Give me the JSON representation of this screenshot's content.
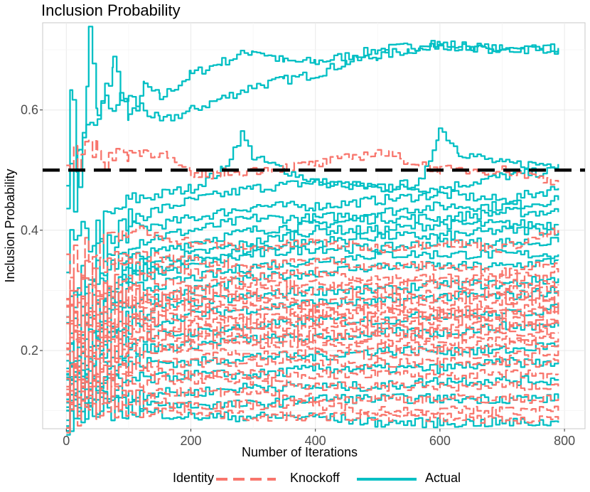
{
  "chart_data": {
    "type": "line",
    "title": "Inclusion Probability",
    "xlabel": "Number of Iterations",
    "ylabel": "Inclusion Probability",
    "xlim": [
      -38,
      833
    ],
    "ylim": [
      0.07,
      0.745
    ],
    "x_ticks": [
      0,
      200,
      400,
      600,
      800
    ],
    "y_ticks": [
      0.2,
      0.4,
      0.6
    ],
    "x_tick_labels": [
      "0",
      "200",
      "400",
      "600",
      "800"
    ],
    "y_tick_labels": [
      "0.2",
      "0.4",
      "0.6"
    ],
    "threshold": 0.5,
    "legend": {
      "title": "Identity",
      "position": "bottom",
      "entries": [
        {
          "label": "Knockoff",
          "color": "#F8766D",
          "linetype": "dashed"
        },
        {
          "label": "Actual",
          "color": "#00BFC4",
          "linetype": "solid"
        }
      ]
    },
    "series": [
      {
        "name": "Actual",
        "color": "#00BFC4",
        "x": [
          0,
          10,
          20,
          36,
          50,
          75,
          100,
          125,
          150,
          200,
          250,
          300,
          350,
          400,
          500,
          600,
          700,
          790
        ],
        "values": [
          0.5,
          0.64,
          0.45,
          0.72,
          0.58,
          0.68,
          0.58,
          0.64,
          0.62,
          0.66,
          0.68,
          0.7,
          0.68,
          0.68,
          0.7,
          0.71,
          0.7,
          0.703
        ]
      },
      {
        "name": "Actual",
        "color": "#00BFC4",
        "x": [
          0,
          20,
          50,
          100,
          150,
          200,
          250,
          300,
          350,
          400,
          450,
          500,
          550,
          600,
          650,
          700,
          790
        ],
        "values": [
          0.45,
          0.5,
          0.6,
          0.62,
          0.58,
          0.6,
          0.62,
          0.64,
          0.65,
          0.66,
          0.68,
          0.69,
          0.7,
          0.71,
          0.7,
          0.7,
          0.7
        ]
      },
      {
        "name": "Actual",
        "color": "#00BFC4",
        "x": [
          0,
          100,
          200,
          250,
          280,
          300,
          350,
          400,
          500,
          570,
          598,
          630,
          700,
          790
        ],
        "values": [
          0.35,
          0.45,
          0.47,
          0.5,
          0.56,
          0.52,
          0.5,
          0.48,
          0.47,
          0.48,
          0.57,
          0.53,
          0.51,
          0.51
        ]
      },
      {
        "name": "Actual",
        "color": "#00BFC4",
        "x": [
          0,
          100,
          200,
          300,
          400,
          500,
          600,
          700,
          790
        ],
        "values": [
          0.3,
          0.42,
          0.45,
          0.47,
          0.48,
          0.47,
          0.47,
          0.49,
          0.5
        ]
      },
      {
        "name": "Actual",
        "color": "#00BFC4",
        "x": [
          0,
          100,
          200,
          300,
          400,
          500,
          600,
          700,
          790
        ],
        "values": [
          0.25,
          0.4,
          0.42,
          0.44,
          0.44,
          0.45,
          0.46,
          0.45,
          0.47
        ]
      },
      {
        "name": "Actual",
        "color": "#00BFC4",
        "x": [
          0,
          100,
          200,
          300,
          400,
          500,
          600,
          700,
          790
        ],
        "values": [
          0.22,
          0.38,
          0.4,
          0.42,
          0.42,
          0.43,
          0.44,
          0.44,
          0.45
        ]
      },
      {
        "name": "Actual",
        "color": "#00BFC4",
        "x": [
          0,
          100,
          200,
          300,
          400,
          500,
          600,
          700,
          790
        ],
        "values": [
          0.2,
          0.35,
          0.38,
          0.4,
          0.41,
          0.42,
          0.42,
          0.43,
          0.43
        ]
      },
      {
        "name": "Actual",
        "color": "#00BFC4",
        "x": [
          0,
          100,
          200,
          300,
          400,
          500,
          600,
          700,
          790
        ],
        "values": [
          0.18,
          0.34,
          0.36,
          0.38,
          0.4,
          0.4,
          0.41,
          0.41,
          0.41
        ]
      },
      {
        "name": "Actual",
        "color": "#00BFC4",
        "x": [
          0,
          100,
          200,
          300,
          400,
          500,
          600,
          700,
          790
        ],
        "values": [
          0.17,
          0.33,
          0.35,
          0.37,
          0.38,
          0.39,
          0.39,
          0.4,
          0.4
        ]
      },
      {
        "name": "Actual",
        "color": "#00BFC4",
        "x": [
          0,
          100,
          200,
          300,
          400,
          500,
          600,
          700,
          790
        ],
        "values": [
          0.16,
          0.32,
          0.34,
          0.36,
          0.37,
          0.37,
          0.38,
          0.38,
          0.38
        ]
      },
      {
        "name": "Actual",
        "color": "#00BFC4",
        "x": [
          0,
          100,
          200,
          300,
          400,
          500,
          600,
          700,
          790
        ],
        "values": [
          0.15,
          0.3,
          0.32,
          0.34,
          0.35,
          0.36,
          0.36,
          0.36,
          0.36
        ]
      },
      {
        "name": "Actual",
        "color": "#00BFC4",
        "x": [
          0,
          100,
          200,
          300,
          400,
          500,
          600,
          700,
          790
        ],
        "values": [
          0.14,
          0.28,
          0.3,
          0.32,
          0.33,
          0.34,
          0.34,
          0.34,
          0.35
        ]
      },
      {
        "name": "Actual",
        "color": "#00BFC4",
        "x": [
          0,
          100,
          200,
          300,
          400,
          500,
          600,
          700,
          790
        ],
        "values": [
          0.13,
          0.26,
          0.28,
          0.29,
          0.3,
          0.3,
          0.31,
          0.31,
          0.32
        ]
      },
      {
        "name": "Actual",
        "color": "#00BFC4",
        "x": [
          0,
          100,
          200,
          300,
          400,
          500,
          600,
          700,
          790
        ],
        "values": [
          0.13,
          0.24,
          0.26,
          0.27,
          0.28,
          0.28,
          0.29,
          0.29,
          0.3
        ]
      },
      {
        "name": "Actual",
        "color": "#00BFC4",
        "x": [
          0,
          100,
          200,
          300,
          400,
          500,
          600,
          700,
          790
        ],
        "values": [
          0.12,
          0.22,
          0.23,
          0.24,
          0.25,
          0.25,
          0.26,
          0.26,
          0.27
        ]
      },
      {
        "name": "Actual",
        "color": "#00BFC4",
        "x": [
          0,
          100,
          200,
          300,
          400,
          500,
          600,
          700,
          790
        ],
        "values": [
          0.12,
          0.2,
          0.21,
          0.22,
          0.22,
          0.23,
          0.23,
          0.24,
          0.24
        ]
      },
      {
        "name": "Actual",
        "color": "#00BFC4",
        "x": [
          0,
          100,
          200,
          300,
          400,
          500,
          600,
          700,
          790
        ],
        "values": [
          0.12,
          0.18,
          0.18,
          0.19,
          0.19,
          0.2,
          0.2,
          0.2,
          0.21
        ]
      },
      {
        "name": "Actual",
        "color": "#00BFC4",
        "x": [
          0,
          100,
          200,
          300,
          400,
          500,
          600,
          700,
          790
        ],
        "values": [
          0.12,
          0.15,
          0.16,
          0.16,
          0.17,
          0.17,
          0.17,
          0.18,
          0.18
        ]
      },
      {
        "name": "Actual",
        "color": "#00BFC4",
        "x": [
          0,
          100,
          200,
          300,
          400,
          500,
          600,
          700,
          790
        ],
        "values": [
          0.12,
          0.13,
          0.13,
          0.14,
          0.14,
          0.14,
          0.15,
          0.15,
          0.15
        ]
      },
      {
        "name": "Actual",
        "color": "#00BFC4",
        "x": [
          0,
          100,
          200,
          300,
          400,
          500,
          600,
          700,
          790
        ],
        "values": [
          0.12,
          0.11,
          0.11,
          0.11,
          0.12,
          0.12,
          0.12,
          0.12,
          0.12
        ]
      },
      {
        "name": "Actual",
        "color": "#00BFC4",
        "x": [
          0,
          100,
          200,
          300,
          400,
          500,
          600,
          700,
          790
        ],
        "values": [
          0.12,
          0.1,
          0.09,
          0.09,
          0.09,
          0.08,
          0.08,
          0.08,
          0.08
        ]
      },
      {
        "name": "Knockoff",
        "color": "#F8766D",
        "x": [
          0,
          50,
          100,
          150,
          200,
          300,
          400,
          500,
          600,
          700,
          790
        ],
        "values": [
          0.55,
          0.52,
          0.53,
          0.53,
          0.49,
          0.5,
          0.51,
          0.53,
          0.5,
          0.5,
          0.48
        ]
      },
      {
        "name": "Knockoff",
        "color": "#F8766D",
        "x": [
          0,
          100,
          200,
          300,
          400,
          500,
          600,
          700,
          790
        ],
        "values": [
          0.33,
          0.4,
          0.38,
          0.37,
          0.38,
          0.37,
          0.38,
          0.37,
          0.4
        ]
      },
      {
        "name": "Knockoff",
        "color": "#F8766D",
        "x": [
          0,
          100,
          200,
          300,
          400,
          500,
          600,
          700,
          790
        ],
        "values": [
          0.3,
          0.36,
          0.35,
          0.34,
          0.35,
          0.34,
          0.34,
          0.33,
          0.35
        ]
      },
      {
        "name": "Knockoff",
        "color": "#F8766D",
        "x": [
          0,
          100,
          200,
          300,
          400,
          500,
          600,
          700,
          790
        ],
        "values": [
          0.28,
          0.34,
          0.33,
          0.32,
          0.33,
          0.32,
          0.32,
          0.32,
          0.33
        ]
      },
      {
        "name": "Knockoff",
        "color": "#F8766D",
        "x": [
          0,
          100,
          200,
          300,
          400,
          500,
          600,
          700,
          790
        ],
        "values": [
          0.26,
          0.32,
          0.31,
          0.31,
          0.31,
          0.31,
          0.31,
          0.31,
          0.31
        ]
      },
      {
        "name": "Knockoff",
        "color": "#F8766D",
        "x": [
          0,
          100,
          200,
          300,
          400,
          500,
          600,
          700,
          790
        ],
        "values": [
          0.25,
          0.3,
          0.3,
          0.3,
          0.3,
          0.3,
          0.29,
          0.3,
          0.3
        ]
      },
      {
        "name": "Knockoff",
        "color": "#F8766D",
        "x": [
          0,
          100,
          200,
          300,
          400,
          500,
          600,
          700,
          790
        ],
        "values": [
          0.24,
          0.29,
          0.29,
          0.29,
          0.28,
          0.29,
          0.28,
          0.29,
          0.29
        ]
      },
      {
        "name": "Knockoff",
        "color": "#F8766D",
        "x": [
          0,
          100,
          200,
          300,
          400,
          500,
          600,
          700,
          790
        ],
        "values": [
          0.23,
          0.28,
          0.28,
          0.28,
          0.27,
          0.28,
          0.27,
          0.28,
          0.28
        ]
      },
      {
        "name": "Knockoff",
        "color": "#F8766D",
        "x": [
          0,
          100,
          200,
          300,
          400,
          500,
          600,
          700,
          790
        ],
        "values": [
          0.22,
          0.27,
          0.27,
          0.27,
          0.26,
          0.27,
          0.26,
          0.27,
          0.27
        ]
      },
      {
        "name": "Knockoff",
        "color": "#F8766D",
        "x": [
          0,
          100,
          200,
          300,
          400,
          500,
          600,
          700,
          790
        ],
        "values": [
          0.21,
          0.26,
          0.26,
          0.26,
          0.26,
          0.26,
          0.26,
          0.26,
          0.26
        ]
      },
      {
        "name": "Knockoff",
        "color": "#F8766D",
        "x": [
          0,
          100,
          200,
          300,
          400,
          500,
          600,
          700,
          790
        ],
        "values": [
          0.2,
          0.25,
          0.25,
          0.25,
          0.25,
          0.25,
          0.25,
          0.25,
          0.25
        ]
      },
      {
        "name": "Knockoff",
        "color": "#F8766D",
        "x": [
          0,
          100,
          200,
          300,
          400,
          500,
          600,
          700,
          790
        ],
        "values": [
          0.19,
          0.24,
          0.24,
          0.24,
          0.24,
          0.24,
          0.24,
          0.24,
          0.24
        ]
      },
      {
        "name": "Knockoff",
        "color": "#F8766D",
        "x": [
          0,
          100,
          200,
          300,
          400,
          500,
          600,
          700,
          790
        ],
        "values": [
          0.18,
          0.23,
          0.23,
          0.23,
          0.23,
          0.23,
          0.23,
          0.23,
          0.23
        ]
      },
      {
        "name": "Knockoff",
        "color": "#F8766D",
        "x": [
          0,
          100,
          200,
          300,
          400,
          500,
          600,
          700,
          790
        ],
        "values": [
          0.17,
          0.22,
          0.22,
          0.22,
          0.22,
          0.22,
          0.22,
          0.22,
          0.22
        ]
      },
      {
        "name": "Knockoff",
        "color": "#F8766D",
        "x": [
          0,
          100,
          200,
          300,
          400,
          500,
          600,
          700,
          790
        ],
        "values": [
          0.16,
          0.21,
          0.21,
          0.21,
          0.21,
          0.21,
          0.21,
          0.21,
          0.21
        ]
      },
      {
        "name": "Knockoff",
        "color": "#F8766D",
        "x": [
          0,
          100,
          200,
          300,
          400,
          500,
          600,
          700,
          790
        ],
        "values": [
          0.15,
          0.2,
          0.2,
          0.19,
          0.2,
          0.19,
          0.2,
          0.19,
          0.2
        ]
      },
      {
        "name": "Knockoff",
        "color": "#F8766D",
        "x": [
          0,
          100,
          200,
          300,
          400,
          500,
          600,
          700,
          790
        ],
        "values": [
          0.14,
          0.18,
          0.18,
          0.18,
          0.18,
          0.18,
          0.18,
          0.18,
          0.18
        ]
      },
      {
        "name": "Knockoff",
        "color": "#F8766D",
        "x": [
          0,
          100,
          200,
          300,
          400,
          500,
          600,
          700,
          790
        ],
        "values": [
          0.14,
          0.17,
          0.16,
          0.16,
          0.16,
          0.16,
          0.16,
          0.16,
          0.16
        ]
      },
      {
        "name": "Knockoff",
        "color": "#F8766D",
        "x": [
          0,
          100,
          200,
          300,
          400,
          500,
          600,
          700,
          790
        ],
        "values": [
          0.13,
          0.15,
          0.15,
          0.15,
          0.14,
          0.14,
          0.14,
          0.14,
          0.14
        ]
      },
      {
        "name": "Knockoff",
        "color": "#F8766D",
        "x": [
          0,
          100,
          200,
          300,
          400,
          500,
          600,
          700,
          790
        ],
        "values": [
          0.13,
          0.13,
          0.13,
          0.13,
          0.12,
          0.12,
          0.12,
          0.12,
          0.12
        ]
      },
      {
        "name": "Knockoff",
        "color": "#F8766D",
        "x": [
          0,
          100,
          200,
          300,
          400,
          500,
          600,
          700,
          790
        ],
        "values": [
          0.12,
          0.12,
          0.11,
          0.11,
          0.11,
          0.1,
          0.1,
          0.1,
          0.1
        ]
      },
      {
        "name": "Knockoff",
        "color": "#F8766D",
        "x": [
          0,
          100,
          200,
          300,
          400,
          500,
          600,
          700,
          790
        ],
        "values": [
          0.12,
          0.1,
          0.1,
          0.09,
          0.09,
          0.09,
          0.09,
          0.085,
          0.085
        ]
      }
    ]
  }
}
